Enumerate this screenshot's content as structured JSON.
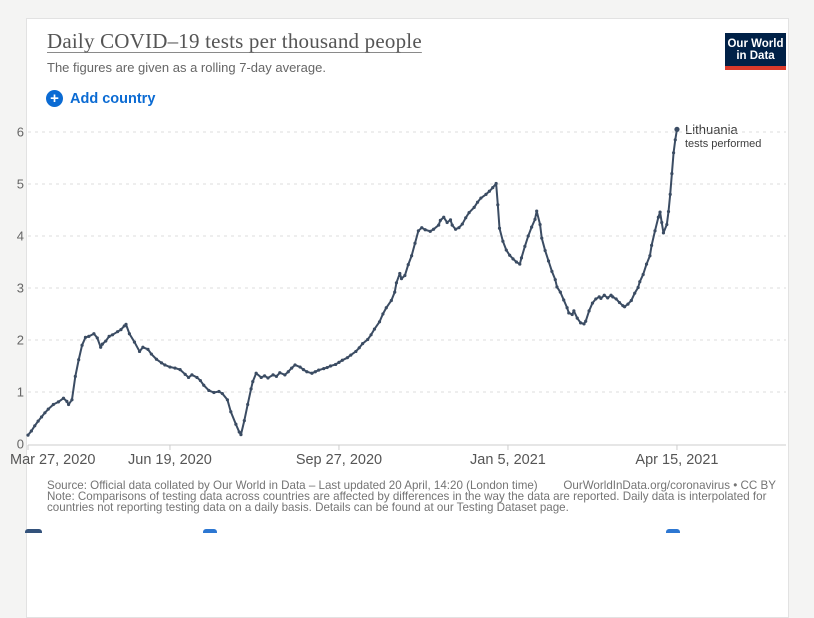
{
  "header": {
    "title": "Daily COVID–19 tests per thousand people",
    "subtitle": "The figures are given as a rolling 7-day average.",
    "add_country_label": "Add country",
    "logo": {
      "line1": "Our World",
      "line2": "in Data",
      "bg": "#002147",
      "accent": "#d93a2b"
    }
  },
  "chart_data": {
    "type": "line",
    "title": "Daily COVID–19 tests per thousand people",
    "xlabel": "",
    "ylabel": "tests per thousand people",
    "ylim": [
      0,
      6.4
    ],
    "x_domain_days": [
      0,
      384
    ],
    "grid": "horizontal-dashed",
    "legend_position": "end-of-line-label",
    "y_ticks": [
      0,
      1,
      2,
      3,
      4,
      5,
      6
    ],
    "x_ticks": [
      {
        "day": 0,
        "label": "Mar 27, 2020"
      },
      {
        "day": 84,
        "label": "Jun 19, 2020"
      },
      {
        "day": 184,
        "label": "Sep 27, 2020"
      },
      {
        "day": 284,
        "label": "Jan 5, 2021"
      },
      {
        "day": 384,
        "label": "Apr 15, 2021"
      }
    ],
    "series": [
      {
        "name": "Lithuania",
        "sublabel": "tests performed",
        "color": "#3b4c63",
        "points": [
          [
            0,
            0.17
          ],
          [
            2,
            0.25
          ],
          [
            4,
            0.35
          ],
          [
            6,
            0.44
          ],
          [
            8,
            0.52
          ],
          [
            10,
            0.6
          ],
          [
            12,
            0.67
          ],
          [
            15,
            0.76
          ],
          [
            18,
            0.81
          ],
          [
            21,
            0.88
          ],
          [
            23,
            0.82
          ],
          [
            24,
            0.76
          ],
          [
            26,
            0.85
          ],
          [
            28,
            1.3
          ],
          [
            30,
            1.62
          ],
          [
            32,
            1.9
          ],
          [
            34,
            2.05
          ],
          [
            36,
            2.07
          ],
          [
            39,
            2.12
          ],
          [
            41,
            2.04
          ],
          [
            43,
            1.86
          ],
          [
            44,
            1.92
          ],
          [
            46,
            1.98
          ],
          [
            48,
            2.07
          ],
          [
            50,
            2.1
          ],
          [
            53,
            2.16
          ],
          [
            55,
            2.2
          ],
          [
            57,
            2.27
          ],
          [
            58,
            2.3
          ],
          [
            60,
            2.12
          ],
          [
            63,
            1.96
          ],
          [
            66,
            1.78
          ],
          [
            68,
            1.86
          ],
          [
            71,
            1.82
          ],
          [
            73,
            1.73
          ],
          [
            76,
            1.63
          ],
          [
            79,
            1.56
          ],
          [
            81,
            1.52
          ],
          [
            84,
            1.48
          ],
          [
            87,
            1.46
          ],
          [
            90,
            1.43
          ],
          [
            93,
            1.34
          ],
          [
            95,
            1.28
          ],
          [
            97,
            1.33
          ],
          [
            100,
            1.28
          ],
          [
            102,
            1.22
          ],
          [
            104,
            1.13
          ],
          [
            107,
            1.03
          ],
          [
            110,
            0.99
          ],
          [
            113,
            1.01
          ],
          [
            115,
            0.97
          ],
          [
            118,
            0.85
          ],
          [
            120,
            0.62
          ],
          [
            123,
            0.38
          ],
          [
            125,
            0.23
          ],
          [
            126,
            0.18
          ],
          [
            128,
            0.45
          ],
          [
            130,
            0.76
          ],
          [
            132,
            1.06
          ],
          [
            133,
            1.2
          ],
          [
            135,
            1.36
          ],
          [
            138,
            1.28
          ],
          [
            140,
            1.31
          ],
          [
            142,
            1.27
          ],
          [
            145,
            1.33
          ],
          [
            147,
            1.3
          ],
          [
            149,
            1.37
          ],
          [
            152,
            1.33
          ],
          [
            154,
            1.39
          ],
          [
            156,
            1.46
          ],
          [
            158,
            1.52
          ],
          [
            161,
            1.48
          ],
          [
            163,
            1.43
          ],
          [
            165,
            1.39
          ],
          [
            168,
            1.36
          ],
          [
            170,
            1.39
          ],
          [
            172,
            1.42
          ],
          [
            175,
            1.45
          ],
          [
            177,
            1.47
          ],
          [
            179,
            1.5
          ],
          [
            182,
            1.53
          ],
          [
            184,
            1.57
          ],
          [
            186,
            1.61
          ],
          [
            189,
            1.66
          ],
          [
            191,
            1.71
          ],
          [
            194,
            1.78
          ],
          [
            196,
            1.85
          ],
          [
            198,
            1.93
          ],
          [
            201,
            2.01
          ],
          [
            203,
            2.1
          ],
          [
            205,
            2.21
          ],
          [
            208,
            2.35
          ],
          [
            210,
            2.5
          ],
          [
            212,
            2.62
          ],
          [
            215,
            2.76
          ],
          [
            217,
            2.92
          ],
          [
            218,
            3.1
          ],
          [
            220,
            3.28
          ],
          [
            221,
            3.18
          ],
          [
            223,
            3.24
          ],
          [
            225,
            3.45
          ],
          [
            227,
            3.62
          ],
          [
            229,
            3.86
          ],
          [
            231,
            4.1
          ],
          [
            233,
            4.16
          ],
          [
            235,
            4.12
          ],
          [
            238,
            4.09
          ],
          [
            240,
            4.13
          ],
          [
            243,
            4.21
          ],
          [
            244,
            4.3
          ],
          [
            246,
            4.36
          ],
          [
            248,
            4.26
          ],
          [
            250,
            4.31
          ],
          [
            251,
            4.21
          ],
          [
            253,
            4.13
          ],
          [
            255,
            4.16
          ],
          [
            257,
            4.23
          ],
          [
            259,
            4.35
          ],
          [
            261,
            4.45
          ],
          [
            264,
            4.55
          ],
          [
            266,
            4.65
          ],
          [
            268,
            4.73
          ],
          [
            271,
            4.8
          ],
          [
            273,
            4.86
          ],
          [
            275,
            4.93
          ],
          [
            277,
            5.01
          ],
          [
            278,
            4.6
          ],
          [
            279,
            4.15
          ],
          [
            281,
            3.9
          ],
          [
            283,
            3.73
          ],
          [
            285,
            3.63
          ],
          [
            287,
            3.56
          ],
          [
            289,
            3.5
          ],
          [
            291,
            3.46
          ],
          [
            292,
            3.58
          ],
          [
            294,
            3.8
          ],
          [
            296,
            4.0
          ],
          [
            298,
            4.17
          ],
          [
            300,
            4.32
          ],
          [
            301,
            4.48
          ],
          [
            303,
            4.22
          ],
          [
            304,
            3.96
          ],
          [
            306,
            3.72
          ],
          [
            308,
            3.52
          ],
          [
            310,
            3.32
          ],
          [
            312,
            3.16
          ],
          [
            313,
            3.02
          ],
          [
            315,
            2.92
          ],
          [
            317,
            2.77
          ],
          [
            319,
            2.62
          ],
          [
            320,
            2.52
          ],
          [
            322,
            2.49
          ],
          [
            323,
            2.56
          ],
          [
            325,
            2.42
          ],
          [
            327,
            2.33
          ],
          [
            329,
            2.31
          ],
          [
            330,
            2.36
          ],
          [
            332,
            2.56
          ],
          [
            334,
            2.71
          ],
          [
            336,
            2.79
          ],
          [
            338,
            2.83
          ],
          [
            339,
            2.8
          ],
          [
            341,
            2.86
          ],
          [
            343,
            2.81
          ],
          [
            345,
            2.86
          ],
          [
            346,
            2.83
          ],
          [
            348,
            2.79
          ],
          [
            350,
            2.72
          ],
          [
            352,
            2.66
          ],
          [
            353,
            2.64
          ],
          [
            355,
            2.69
          ],
          [
            357,
            2.76
          ],
          [
            359,
            2.9
          ],
          [
            361,
            3.01
          ],
          [
            362,
            3.12
          ],
          [
            364,
            3.26
          ],
          [
            366,
            3.46
          ],
          [
            368,
            3.62
          ],
          [
            369,
            3.82
          ],
          [
            371,
            4.1
          ],
          [
            373,
            4.36
          ],
          [
            374,
            4.46
          ],
          [
            375,
            4.26
          ],
          [
            376,
            4.06
          ],
          [
            378,
            4.22
          ],
          [
            379,
            4.47
          ],
          [
            380,
            4.8
          ],
          [
            381,
            5.2
          ],
          [
            382,
            5.6
          ],
          [
            383,
            5.85
          ],
          [
            384,
            6.05
          ]
        ]
      }
    ],
    "colors": {
      "line": "#3b4c63",
      "gridline": "#dddddd",
      "axis": "#cccccc",
      "y_tick_label": "#666666",
      "x_tick_label": "#555555"
    }
  },
  "footer": {
    "source": "Source: Official data collated by Our World in Data – Last updated 20 April, 14:20 (London time)",
    "link": "OurWorldInData.org/coronavirus • CC BY",
    "note": "Note: Comparisons of testing data across countries are affected by differences in the way the data are reported. Daily data is interpolated for countries not reporting testing data on a daily basis. Details can be found at our Testing Dataset page."
  }
}
